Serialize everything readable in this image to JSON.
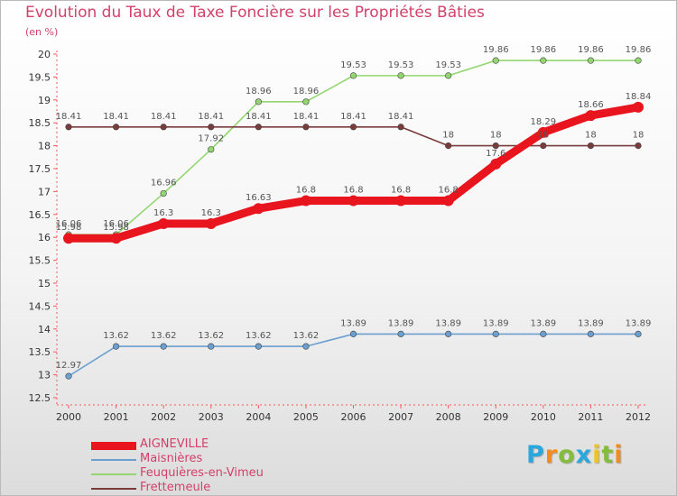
{
  "title": "Evolution du Taux de Taxe Foncière sur les Propriétés Bâties",
  "unit": "(en %)",
  "logo_letters": [
    {
      "ch": "P",
      "color": "#2aa7dc"
    },
    {
      "ch": "r",
      "color": "#f28c1e"
    },
    {
      "ch": "o",
      "color": "#84bd3c"
    },
    {
      "ch": "x",
      "color": "#2aa7dc"
    },
    {
      "ch": "i",
      "color": "#f2c21e"
    },
    {
      "ch": "t",
      "color": "#84bd3c"
    },
    {
      "ch": "i",
      "color": "#f28c1e"
    }
  ],
  "chart_data": {
    "type": "line",
    "title": "Evolution du Taux de Taxe Foncière sur les Propriétés Bâties",
    "ylabel": "(en %)",
    "xlabel": "",
    "x": [
      2000,
      2001,
      2002,
      2003,
      2004,
      2005,
      2006,
      2007,
      2008,
      2009,
      2010,
      2011,
      2012
    ],
    "ylim": [
      12.5,
      20
    ],
    "yticks": [
      12.5,
      13,
      13.5,
      14,
      14.5,
      15,
      15.5,
      16,
      16.5,
      17,
      17.5,
      18,
      18.5,
      19,
      19.5,
      20
    ],
    "grid": false,
    "legend_position": "bottom-left",
    "series": [
      {
        "name": "Maisnières",
        "color": "#6a9fcf",
        "values": [
          12.97,
          13.62,
          13.62,
          13.62,
          13.62,
          13.62,
          13.89,
          13.89,
          13.89,
          13.89,
          13.89,
          13.89,
          13.89
        ],
        "labels": [
          "12.97",
          "13.62",
          "13.62",
          "13.62",
          "13.62",
          "13.62",
          "13.89",
          "13.89",
          "13.89",
          "13.89",
          "13.89",
          "13.89",
          "13.89"
        ]
      },
      {
        "name": "Feuquières-en-Vimeu",
        "color": "#93d670",
        "values": [
          16.06,
          16.06,
          16.96,
          17.92,
          18.96,
          18.96,
          19.53,
          19.53,
          19.53,
          19.86,
          19.86,
          19.86,
          19.86
        ],
        "labels": [
          "16.06",
          "16.06",
          "16.96",
          "17.92",
          "18.96",
          "18.96",
          "19.53",
          "19.53",
          "19.53",
          "19.86",
          "19.86",
          "19.86",
          "19.86"
        ]
      },
      {
        "name": "Frettemeule",
        "color": "#7a3b3b",
        "values": [
          18.41,
          18.41,
          18.41,
          18.41,
          18.41,
          18.41,
          18.41,
          18.41,
          18,
          18,
          18,
          18,
          18
        ],
        "labels": [
          "18.41",
          "18.41",
          "18.41",
          "18.41",
          "18.41",
          "18.41",
          "18.41",
          "18.41",
          "18",
          "18",
          "18",
          "18",
          "18"
        ]
      },
      {
        "name": "AIGNEVILLE",
        "color": "#e8141e",
        "values": [
          15.98,
          15.98,
          16.3,
          16.3,
          16.63,
          16.8,
          16.8,
          16.8,
          16.8,
          17.6,
          18.29,
          18.66,
          18.84
        ],
        "labels": [
          "15.98",
          "15.98",
          "16.3",
          "16.3",
          "16.63",
          "16.8",
          "16.8",
          "16.8",
          "16.8",
          "17.6",
          "18.29",
          "18.66",
          "18.84"
        ]
      }
    ]
  }
}
